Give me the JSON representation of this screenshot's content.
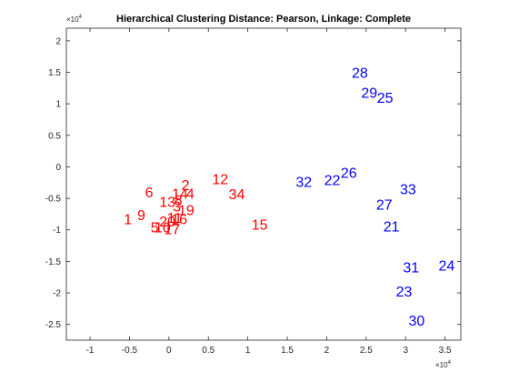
{
  "chart_data": {
    "type": "scatter",
    "title": "Hierarchical Clustering Distance: Pearson, Linkage: Complete",
    "xlabel": "",
    "ylabel": "",
    "x_exponent_label": "×10",
    "x_exponent_power": "4",
    "y_exponent_label": "×10",
    "y_exponent_power": "4",
    "xlim": [
      -1.3,
      3.7
    ],
    "ylim": [
      -2.75,
      2.2
    ],
    "xticks": [
      -1,
      -0.5,
      0,
      0.5,
      1,
      1.5,
      2,
      2.5,
      3,
      3.5
    ],
    "xtick_labels": [
      "-1",
      "-0.5",
      "0",
      "0.5",
      "1",
      "1.5",
      "2",
      "2.5",
      "3",
      "3.5"
    ],
    "yticks": [
      2,
      1.5,
      1,
      0.5,
      0,
      -0.5,
      -1,
      -1.5,
      -2,
      -2.5
    ],
    "ytick_labels": [
      "2",
      "1.5",
      "1",
      "0.5",
      "0",
      "-0.5",
      "-1",
      "-1.5",
      "-2",
      "-2.5"
    ],
    "grid": false,
    "series": [
      {
        "color": "#ff0000",
        "points": [
          {
            "label": "1",
            "x": -0.52,
            "y": -0.82
          },
          {
            "label": "9",
            "x": -0.35,
            "y": -0.76
          },
          {
            "label": "5",
            "x": -0.18,
            "y": -0.95
          },
          {
            "label": "10",
            "x": -0.08,
            "y": -0.95
          },
          {
            "label": "6",
            "x": -0.25,
            "y": -0.4
          },
          {
            "label": "2",
            "x": 0.21,
            "y": -0.28
          },
          {
            "label": "13",
            "x": -0.02,
            "y": -0.55
          },
          {
            "label": "8",
            "x": 0.12,
            "y": -0.52
          },
          {
            "label": "14",
            "x": 0.14,
            "y": -0.42
          },
          {
            "label": "4",
            "x": 0.27,
            "y": -0.42
          },
          {
            "label": "3",
            "x": 0.1,
            "y": -0.62
          },
          {
            "label": "19",
            "x": 0.22,
            "y": -0.68
          },
          {
            "label": "20",
            "x": -0.02,
            "y": -0.86
          },
          {
            "label": "11",
            "x": 0.07,
            "y": -0.8
          },
          {
            "label": "16",
            "x": 0.13,
            "y": -0.82
          },
          {
            "label": "17",
            "x": 0.04,
            "y": -0.98
          },
          {
            "label": "12",
            "x": 0.65,
            "y": -0.19
          },
          {
            "label": "34",
            "x": 0.86,
            "y": -0.43
          },
          {
            "label": "15",
            "x": 1.15,
            "y": -0.91
          }
        ]
      },
      {
        "color": "#0000ff",
        "points": [
          {
            "label": "28",
            "x": 2.42,
            "y": 1.5
          },
          {
            "label": "29",
            "x": 2.54,
            "y": 1.18
          },
          {
            "label": "25",
            "x": 2.74,
            "y": 1.1
          },
          {
            "label": "26",
            "x": 2.28,
            "y": -0.09
          },
          {
            "label": "32",
            "x": 1.71,
            "y": -0.23
          },
          {
            "label": "22",
            "x": 2.07,
            "y": -0.2
          },
          {
            "label": "33",
            "x": 3.03,
            "y": -0.35
          },
          {
            "label": "27",
            "x": 2.73,
            "y": -0.59
          },
          {
            "label": "21",
            "x": 2.82,
            "y": -0.94
          },
          {
            "label": "31",
            "x": 3.07,
            "y": -1.59
          },
          {
            "label": "24",
            "x": 3.52,
            "y": -1.56
          },
          {
            "label": "23",
            "x": 2.98,
            "y": -1.97
          },
          {
            "label": "30",
            "x": 3.14,
            "y": -2.43
          }
        ]
      }
    ]
  }
}
